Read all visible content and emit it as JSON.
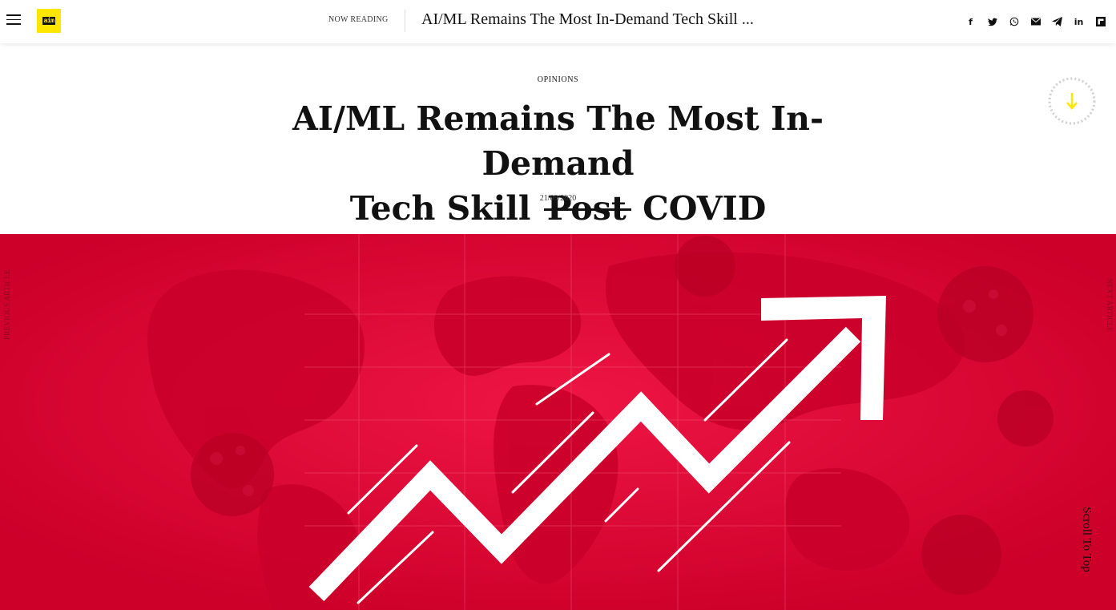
{
  "header": {
    "menu_icon": "hamburger-menu-icon",
    "logo_text": "aim",
    "now_reading_label": "NOW READING",
    "now_reading_title": "AI/ML Remains The Most In-Demand Tech Skill ...",
    "share_icons": [
      "facebook-icon",
      "twitter-icon",
      "whatsapp-icon",
      "email-icon",
      "telegram-icon",
      "linkedin-icon",
      "flipboard-icon"
    ],
    "share_glyphs": [
      "f",
      "𝕥",
      "◔",
      "✉",
      "➤",
      "in",
      "◧"
    ]
  },
  "article": {
    "category": "OPINIONS",
    "title_line1": "AI/ML Remains The Most In-Demand",
    "title_pre": "Tech Skill",
    "title_struck": "Post",
    "title_post": "COVID",
    "date": "21/09/2020"
  },
  "nav": {
    "previous": "PREVIOUS ARTICLE",
    "next": "NEXT ARTICLE",
    "scroll_top": "Scroll To Top"
  },
  "colors": {
    "accent": "#ffe600",
    "hero_bg": "#d7002e"
  }
}
